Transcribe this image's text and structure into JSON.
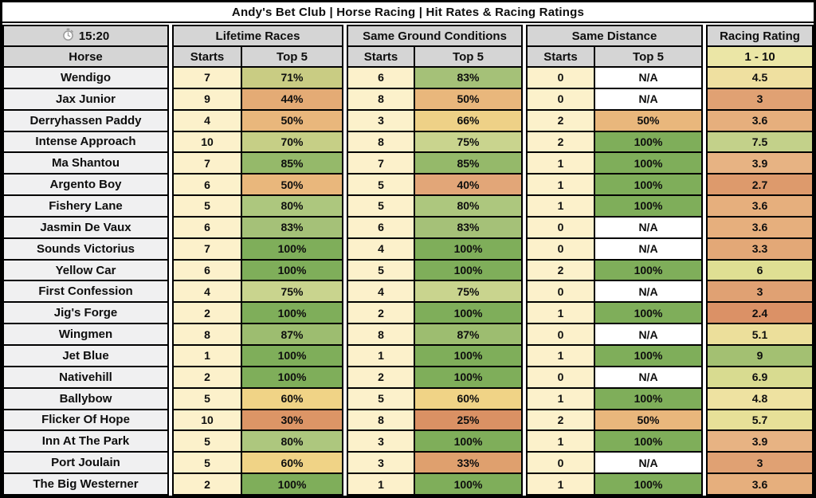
{
  "title": "Andy's Bet Club | Horse Racing | Hit Rates & Racing Ratings",
  "header": {
    "time": "15:20",
    "time_icon": "stopwatch-icon",
    "horse_col": "Horse",
    "groups": [
      {
        "label": "Lifetime Races",
        "starts": "Starts",
        "top5": "Top 5"
      },
      {
        "label": "Same Ground Conditions",
        "starts": "Starts",
        "top5": "Top 5"
      },
      {
        "label": "Same Distance",
        "starts": "Starts",
        "top5": "Top 5"
      }
    ],
    "rating_label": "Racing Rating",
    "rating_range": "1 - 10"
  },
  "colors": {
    "title_bg": "#f3df60",
    "header_bg": "#d5d5d5",
    "rating_header_bg": "#ebe6a6",
    "horse_bg": "#f0f0f1",
    "starts_bg": "#fcf1cb",
    "na_bg": "#ffffff",
    "pct_green_full": "#7fae5a",
    "pct_red_low": "#da9164",
    "border": "#000000"
  },
  "rows": [
    {
      "horse": "Wendigo",
      "groups": [
        {
          "starts": "7",
          "top5": "71%",
          "color": "#c9cc83"
        },
        {
          "starts": "6",
          "top5": "83%",
          "color": "#a5c178"
        },
        {
          "starts": "0",
          "top5": "N/A",
          "color": "#ffffff"
        }
      ],
      "rating": "4.5",
      "rating_color": "#efe0a0"
    },
    {
      "horse": "Jax Junior",
      "groups": [
        {
          "starts": "9",
          "top5": "44%",
          "color": "#e4ab75"
        },
        {
          "starts": "8",
          "top5": "50%",
          "color": "#e9b77c"
        },
        {
          "starts": "0",
          "top5": "N/A",
          "color": "#ffffff"
        }
      ],
      "rating": "3",
      "rating_color": "#e0a173"
    },
    {
      "horse": "Derryhassen Paddy",
      "groups": [
        {
          "starts": "4",
          "top5": "50%",
          "color": "#e9b77c"
        },
        {
          "starts": "3",
          "top5": "66%",
          "color": "#eed187"
        },
        {
          "starts": "2",
          "top5": "50%",
          "color": "#e9b77c"
        }
      ],
      "rating": "3.6",
      "rating_color": "#e6af7d"
    },
    {
      "horse": "Intense Approach",
      "groups": [
        {
          "starts": "10",
          "top5": "70%",
          "color": "#c6cf86"
        },
        {
          "starts": "8",
          "top5": "75%",
          "color": "#c9d48e"
        },
        {
          "starts": "2",
          "top5": "100%",
          "color": "#7fae5a"
        }
      ],
      "rating": "7.5",
      "rating_color": "#c3d18a"
    },
    {
      "horse": "Ma Shantou",
      "groups": [
        {
          "starts": "7",
          "top5": "85%",
          "color": "#95b96a"
        },
        {
          "starts": "7",
          "top5": "85%",
          "color": "#95b96a"
        },
        {
          "starts": "1",
          "top5": "100%",
          "color": "#7fae5a"
        }
      ],
      "rating": "3.9",
      "rating_color": "#e7b383"
    },
    {
      "horse": "Argento Boy",
      "groups": [
        {
          "starts": "6",
          "top5": "50%",
          "color": "#e9b77c"
        },
        {
          "starts": "5",
          "top5": "40%",
          "color": "#e2a678"
        },
        {
          "starts": "1",
          "top5": "100%",
          "color": "#7fae5a"
        }
      ],
      "rating": "2.7",
      "rating_color": "#dd9a6c"
    },
    {
      "horse": "Fishery Lane",
      "groups": [
        {
          "starts": "5",
          "top5": "80%",
          "color": "#adc77e"
        },
        {
          "starts": "5",
          "top5": "80%",
          "color": "#adc77e"
        },
        {
          "starts": "1",
          "top5": "100%",
          "color": "#7fae5a"
        }
      ],
      "rating": "3.6",
      "rating_color": "#e6af7d"
    },
    {
      "horse": "Jasmin De Vaux",
      "groups": [
        {
          "starts": "6",
          "top5": "83%",
          "color": "#a5c178"
        },
        {
          "starts": "6",
          "top5": "83%",
          "color": "#a5c178"
        },
        {
          "starts": "0",
          "top5": "N/A",
          "color": "#ffffff"
        }
      ],
      "rating": "3.6",
      "rating_color": "#e6af7d"
    },
    {
      "horse": "Sounds Victorius",
      "groups": [
        {
          "starts": "7",
          "top5": "100%",
          "color": "#7fae5a"
        },
        {
          "starts": "4",
          "top5": "100%",
          "color": "#7fae5a"
        },
        {
          "starts": "0",
          "top5": "N/A",
          "color": "#ffffff"
        }
      ],
      "rating": "3.3",
      "rating_color": "#e3a877"
    },
    {
      "horse": "Yellow Car",
      "groups": [
        {
          "starts": "6",
          "top5": "100%",
          "color": "#7fae5a"
        },
        {
          "starts": "5",
          "top5": "100%",
          "color": "#7fae5a"
        },
        {
          "starts": "2",
          "top5": "100%",
          "color": "#7fae5a"
        }
      ],
      "rating": "6",
      "rating_color": "#dfdf93"
    },
    {
      "horse": "First Confession",
      "groups": [
        {
          "starts": "4",
          "top5": "75%",
          "color": "#c9d48e"
        },
        {
          "starts": "4",
          "top5": "75%",
          "color": "#c9d48e"
        },
        {
          "starts": "0",
          "top5": "N/A",
          "color": "#ffffff"
        }
      ],
      "rating": "3",
      "rating_color": "#e0a173"
    },
    {
      "horse": "Jig's Forge",
      "groups": [
        {
          "starts": "2",
          "top5": "100%",
          "color": "#7fae5a"
        },
        {
          "starts": "2",
          "top5": "100%",
          "color": "#7fae5a"
        },
        {
          "starts": "1",
          "top5": "100%",
          "color": "#7fae5a"
        }
      ],
      "rating": "2.4",
      "rating_color": "#db9166"
    },
    {
      "horse": "Wingmen",
      "groups": [
        {
          "starts": "8",
          "top5": "87%",
          "color": "#9dbd70"
        },
        {
          "starts": "8",
          "top5": "87%",
          "color": "#9dbd70"
        },
        {
          "starts": "0",
          "top5": "N/A",
          "color": "#ffffff"
        }
      ],
      "rating": "5.1",
      "rating_color": "#ecdf9b"
    },
    {
      "horse": "Jet Blue",
      "groups": [
        {
          "starts": "1",
          "top5": "100%",
          "color": "#7fae5a"
        },
        {
          "starts": "1",
          "top5": "100%",
          "color": "#7fae5a"
        },
        {
          "starts": "1",
          "top5": "100%",
          "color": "#7fae5a"
        }
      ],
      "rating": "9",
      "rating_color": "#a3c072"
    },
    {
      "horse": "Nativehill",
      "groups": [
        {
          "starts": "2",
          "top5": "100%",
          "color": "#7fae5a"
        },
        {
          "starts": "2",
          "top5": "100%",
          "color": "#7fae5a"
        },
        {
          "starts": "0",
          "top5": "N/A",
          "color": "#ffffff"
        }
      ],
      "rating": "6.9",
      "rating_color": "#d8db90"
    },
    {
      "horse": "Ballybow",
      "groups": [
        {
          "starts": "5",
          "top5": "60%",
          "color": "#f0d386"
        },
        {
          "starts": "5",
          "top5": "60%",
          "color": "#f0d386"
        },
        {
          "starts": "1",
          "top5": "100%",
          "color": "#7fae5a"
        }
      ],
      "rating": "4.8",
      "rating_color": "#eee2a1"
    },
    {
      "horse": "Flicker Of Hope",
      "groups": [
        {
          "starts": "10",
          "top5": "30%",
          "color": "#dc9566"
        },
        {
          "starts": "8",
          "top5": "25%",
          "color": "#da9164"
        },
        {
          "starts": "2",
          "top5": "50%",
          "color": "#e9b77c"
        }
      ],
      "rating": "5.7",
      "rating_color": "#e7e098"
    },
    {
      "horse": "Inn At The Park",
      "groups": [
        {
          "starts": "5",
          "top5": "80%",
          "color": "#adc77e"
        },
        {
          "starts": "3",
          "top5": "100%",
          "color": "#7fae5a"
        },
        {
          "starts": "1",
          "top5": "100%",
          "color": "#7fae5a"
        }
      ],
      "rating": "3.9",
      "rating_color": "#e7b383"
    },
    {
      "horse": "Port Joulain",
      "groups": [
        {
          "starts": "5",
          "top5": "60%",
          "color": "#f0d386"
        },
        {
          "starts": "3",
          "top5": "33%",
          "color": "#dfa06e"
        },
        {
          "starts": "0",
          "top5": "N/A",
          "color": "#ffffff"
        }
      ],
      "rating": "3",
      "rating_color": "#e0a173"
    },
    {
      "horse": "The Big Westerner",
      "groups": [
        {
          "starts": "2",
          "top5": "100%",
          "color": "#7fae5a"
        },
        {
          "starts": "1",
          "top5": "100%",
          "color": "#7fae5a"
        },
        {
          "starts": "1",
          "top5": "100%",
          "color": "#7fae5a"
        }
      ],
      "rating": "3.6",
      "rating_color": "#e6af7d"
    }
  ]
}
